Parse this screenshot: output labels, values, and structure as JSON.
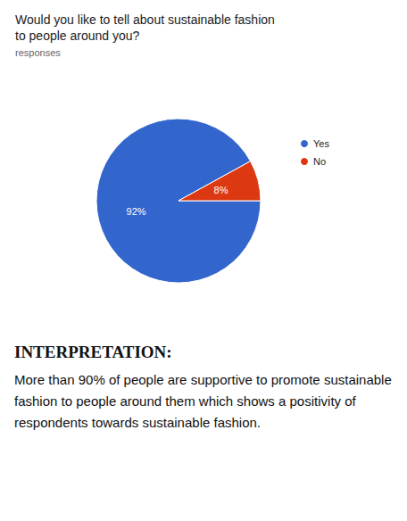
{
  "chart_data": {
    "type": "pie",
    "title": "Would you like to tell about sustainable fashion to people around you?",
    "subtitle": "responses",
    "categories": [
      "Yes",
      "No"
    ],
    "values": [
      92,
      8
    ],
    "value_labels": [
      "92%",
      "8%"
    ],
    "colors": [
      "#3366cc",
      "#dc3912"
    ],
    "data_labels": true,
    "legend": "right"
  },
  "interpretation": {
    "heading": "INTERPRETATION:",
    "text": "More than 90% of people are supportive to promote sustainable fashion to people around them which shows a positivity of respondents towards sustainable fashion."
  }
}
